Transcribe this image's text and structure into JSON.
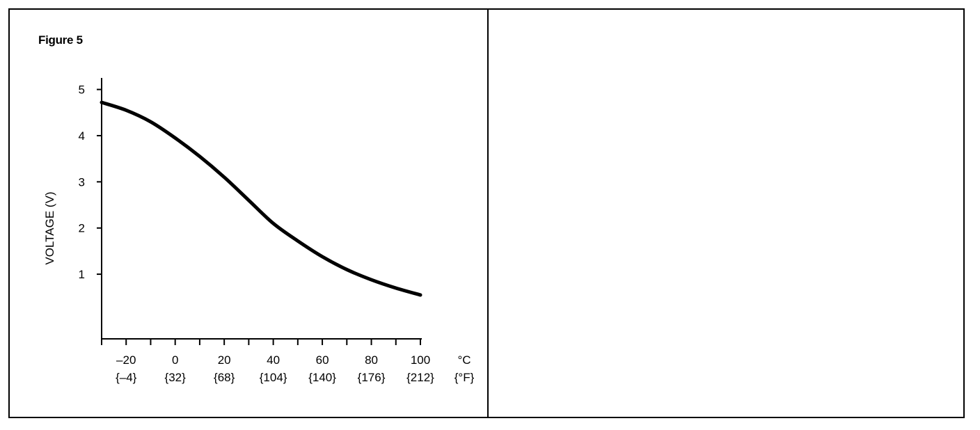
{
  "figure_title": "Figure 5",
  "chart_data": {
    "type": "line",
    "title": "",
    "ylabel": "VOLTAGE (V)",
    "xlabel": "",
    "x_unit_label": "°C",
    "x_alt_unit_label": "{°F}",
    "xlim": [
      -30,
      100
    ],
    "ylim": [
      -0.4,
      5.25
    ],
    "x_ticks": [
      {
        "value": -20,
        "label": "–20",
        "alt_label": "{–4}"
      },
      {
        "value": 0,
        "label": "0",
        "alt_label": "{32}"
      },
      {
        "value": 20,
        "label": "20",
        "alt_label": "{68}"
      },
      {
        "value": 40,
        "label": "40",
        "alt_label": "{104}"
      },
      {
        "value": 60,
        "label": "60",
        "alt_label": "{140}"
      },
      {
        "value": 80,
        "label": "80",
        "alt_label": "{176}"
      },
      {
        "value": 100,
        "label": "100",
        "alt_label": "{212}"
      }
    ],
    "x_minor_ticks": [
      -30,
      -10,
      10,
      30,
      50,
      70,
      90
    ],
    "y_ticks": [
      {
        "value": 1,
        "label": "1"
      },
      {
        "value": 2,
        "label": "2"
      },
      {
        "value": 3,
        "label": "3"
      },
      {
        "value": 4,
        "label": "4"
      },
      {
        "value": 5,
        "label": "5"
      }
    ],
    "grid": false,
    "series": [
      {
        "color": "#000000",
        "x": [
          -30,
          -20,
          -10,
          0,
          10,
          20,
          30,
          40,
          50,
          60,
          70,
          80,
          90,
          100
        ],
        "y": [
          4.72,
          4.55,
          4.3,
          3.95,
          3.55,
          3.1,
          2.6,
          2.1,
          1.72,
          1.38,
          1.1,
          0.88,
          0.7,
          0.55
        ]
      }
    ]
  }
}
